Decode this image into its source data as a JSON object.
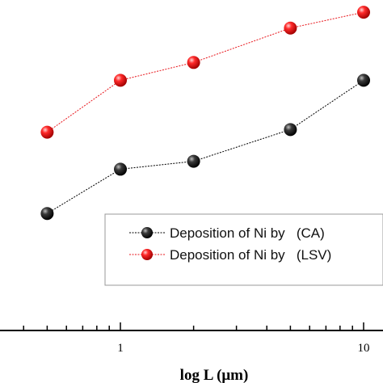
{
  "chart_data": {
    "type": "line",
    "title": "",
    "xlabel": "log L (μm)",
    "ylabel": "",
    "x_scale": "log",
    "xlim": [
      0.3,
      12
    ],
    "ylim": [
      0,
      1
    ],
    "x_tick_labels": [
      "1",
      "10"
    ],
    "x_tick_values": [
      1,
      10
    ],
    "grid": false,
    "legend_position": "lower-right",
    "series": [
      {
        "name": "Deposition of Ni by   (CA)",
        "color": "#000000",
        "x": [
          0.5,
          1,
          2,
          5,
          10
        ],
        "y": [
          0.354,
          0.488,
          0.512,
          0.608,
          0.757
        ]
      },
      {
        "name": "Deposition of Ni by   (LSV)",
        "color": "#e8151b",
        "x": [
          0.5,
          1,
          2,
          5,
          10
        ],
        "y": [
          0.6,
          0.757,
          0.811,
          0.915,
          0.963
        ]
      }
    ]
  }
}
